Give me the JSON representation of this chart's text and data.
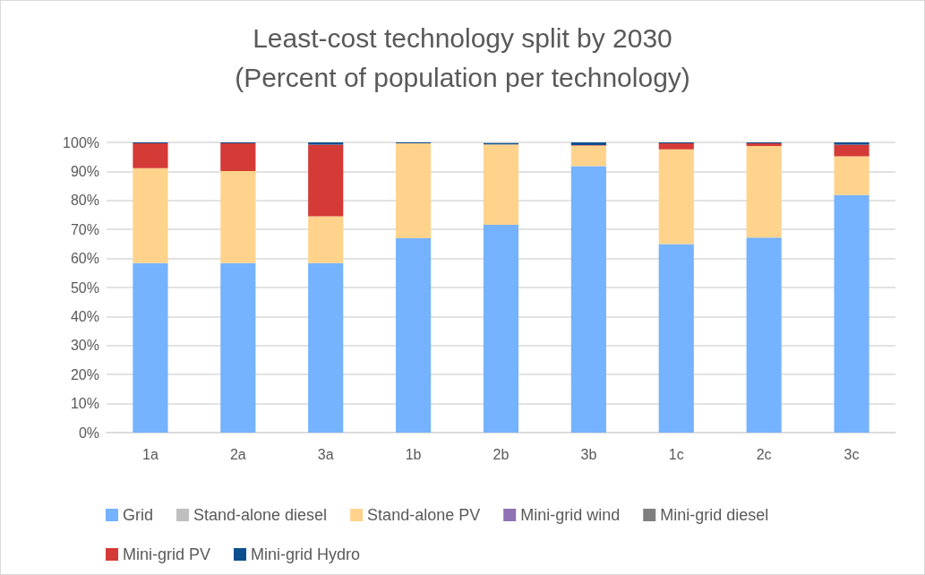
{
  "chart_data": {
    "type": "bar",
    "title": "Least-cost technology split by 2030\n(Percent of population per technology)",
    "stacked": true,
    "categories": [
      "1a",
      "2a",
      "3a",
      "1b",
      "2b",
      "3b",
      "1c",
      "2c",
      "3c"
    ],
    "series": [
      {
        "name": "Grid",
        "color": "#75b2ff",
        "values": [
          58.4,
          58.4,
          58.4,
          67.0,
          71.6,
          91.8,
          65.0,
          67.2,
          81.9
        ]
      },
      {
        "name": "Stand-alone diesel",
        "color": "#bfbfbf",
        "values": [
          0,
          0,
          0,
          0,
          0,
          0,
          0,
          0,
          0
        ]
      },
      {
        "name": "Stand-alone PV",
        "color": "#ffd38c",
        "values": [
          32.7,
          31.7,
          16.1,
          32.7,
          27.7,
          7.1,
          32.6,
          31.6,
          13.3
        ]
      },
      {
        "name": "Mini-grid wind",
        "color": "#8e72b3",
        "values": [
          0,
          0,
          0,
          0,
          0,
          0,
          0,
          0,
          0
        ]
      },
      {
        "name": "Mini-grid diesel",
        "color": "#7f7f7f",
        "values": [
          0,
          0,
          0,
          0,
          0,
          0,
          0,
          0,
          0
        ]
      },
      {
        "name": "Mini-grid PV",
        "color": "#d43a36",
        "values": [
          8.6,
          9.6,
          24.7,
          0,
          null,
          0.2,
          2.1,
          0.9,
          4.0
        ]
      },
      {
        "name": "Mini-grid Hydro",
        "color": "#0b4f8f",
        "values": [
          0.3,
          0.3,
          0.8,
          0.3,
          0.5,
          0.9,
          0.3,
          0.3,
          0.8
        ]
      }
    ],
    "ylim": [
      0,
      100
    ],
    "yticks": [
      {
        "value": 0,
        "label": "0%"
      },
      {
        "value": 10,
        "label": "10%"
      },
      {
        "value": 20,
        "label": "20%"
      },
      {
        "value": 30,
        "label": "30%"
      },
      {
        "value": 40,
        "label": "40%"
      },
      {
        "value": 50,
        "label": "50%"
      },
      {
        "value": 60,
        "label": "60%"
      },
      {
        "value": 70,
        "label": "70%"
      },
      {
        "value": 80,
        "label": "80%"
      },
      {
        "value": 90,
        "label": "90%"
      },
      {
        "value": 100,
        "label": "100%"
      }
    ],
    "grid": "y",
    "legend": "bottom"
  }
}
